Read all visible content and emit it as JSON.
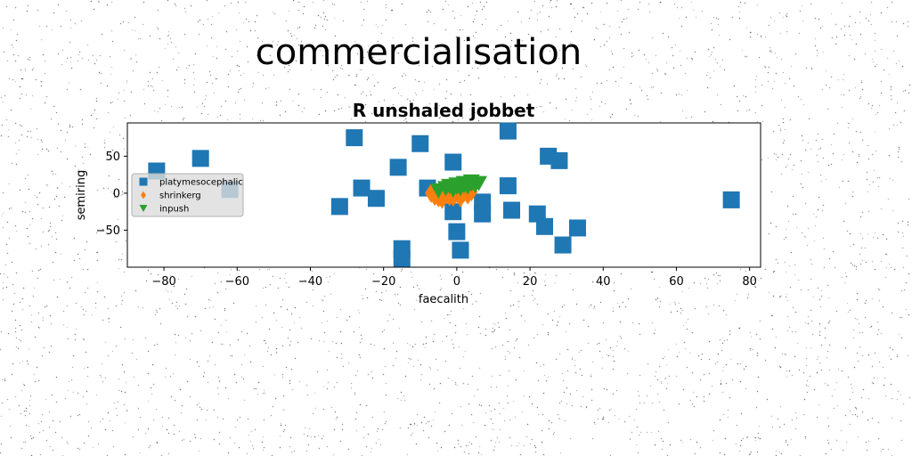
{
  "figure": {
    "suptitle": "commercialisation"
  },
  "colors": {
    "platymesocephalic": "#1f77b4",
    "shrinkerg": "#ff7f0e",
    "inpush": "#2ca02c"
  },
  "chart_data": {
    "type": "scatter",
    "title": "R unshaled jobbet",
    "xlabel": "faecalith",
    "ylabel": "semiring",
    "xlim": [
      -90,
      83
    ],
    "ylim": [
      -100,
      95
    ],
    "xticks": [
      -80,
      -60,
      -40,
      -20,
      0,
      20,
      40,
      60,
      80
    ],
    "yticks": [
      -50,
      0,
      50
    ],
    "grid": false,
    "legend": {
      "location": "center-left"
    },
    "series": [
      {
        "name": "platymesocephalic",
        "marker": "square",
        "points": [
          [
            -82,
            30
          ],
          [
            -70,
            47
          ],
          [
            -62,
            5
          ],
          [
            -28,
            75
          ],
          [
            -26,
            7
          ],
          [
            -22,
            -7
          ],
          [
            -32,
            -18
          ],
          [
            -16,
            35
          ],
          [
            -10,
            67
          ],
          [
            -8,
            7
          ],
          [
            -15,
            -75
          ],
          [
            -15,
            -88
          ],
          [
            -1,
            42
          ],
          [
            -1,
            -25
          ],
          [
            0,
            -52
          ],
          [
            1,
            -77
          ],
          [
            7,
            -12
          ],
          [
            7,
            -28
          ],
          [
            14,
            84
          ],
          [
            14,
            10
          ],
          [
            15,
            -23
          ],
          [
            25,
            50
          ],
          [
            28,
            44
          ],
          [
            22,
            -28
          ],
          [
            24,
            -45
          ],
          [
            29,
            -70
          ],
          [
            33,
            -47
          ],
          [
            75,
            -9
          ]
        ]
      },
      {
        "name": "shrinkerg",
        "marker": "thin_diamond",
        "points": [
          [
            -7,
            0
          ],
          [
            -6,
            -4
          ],
          [
            -5,
            -6
          ],
          [
            -4,
            4
          ],
          [
            -3,
            -2
          ],
          [
            -2,
            2
          ],
          [
            -1,
            -5
          ],
          [
            0,
            0
          ],
          [
            1,
            -3
          ],
          [
            2,
            1
          ],
          [
            3,
            -2
          ],
          [
            4,
            2
          ],
          [
            -4,
            -8
          ],
          [
            -2,
            -4
          ],
          [
            1,
            -6
          ]
        ]
      },
      {
        "name": "inpush",
        "marker": "triangle_down",
        "points": [
          [
            -5,
            3
          ],
          [
            -3,
            6
          ],
          [
            -1,
            4
          ],
          [
            0,
            8
          ],
          [
            1,
            6
          ],
          [
            2,
            10
          ],
          [
            3,
            8
          ],
          [
            4,
            12
          ],
          [
            5,
            10
          ],
          [
            6,
            13
          ],
          [
            -2,
            9
          ],
          [
            0,
            11
          ],
          [
            2,
            13
          ],
          [
            4,
            15
          ]
        ]
      }
    ]
  }
}
